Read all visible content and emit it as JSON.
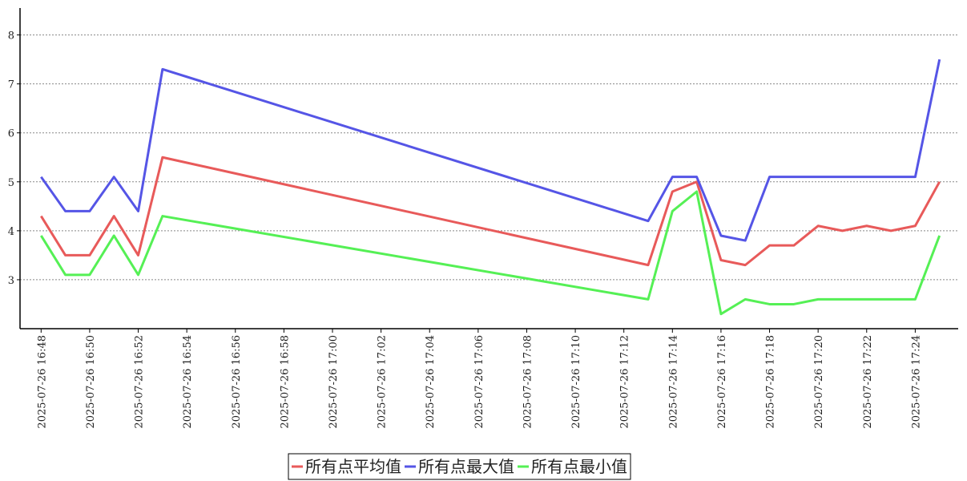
{
  "chart_data": {
    "type": "line",
    "x": [
      "2025-07-26 16:48",
      "2025-07-26 16:49",
      "2025-07-26 16:50",
      "2025-07-26 16:51",
      "2025-07-26 16:52",
      "2025-07-26 16:53",
      "2025-07-26 17:13",
      "2025-07-26 17:14",
      "2025-07-26 17:15",
      "2025-07-26 17:16",
      "2025-07-26 17:17",
      "2025-07-26 17:18",
      "2025-07-26 17:19",
      "2025-07-26 17:20",
      "2025-07-26 17:21",
      "2025-07-26 17:22",
      "2025-07-26 17:23",
      "2025-07-26 17:24",
      "2025-07-26 17:25"
    ],
    "series": [
      {
        "name": "所有点平均值",
        "color": "#e85a5a",
        "values": [
          4.3,
          3.5,
          3.5,
          4.3,
          3.5,
          5.5,
          3.3,
          4.8,
          5.0,
          3.4,
          3.3,
          3.7,
          3.7,
          4.1,
          4.0,
          4.1,
          4.0,
          4.1,
          5.0
        ]
      },
      {
        "name": "所有点最大值",
        "color": "#5555e6",
        "values": [
          5.1,
          4.4,
          4.4,
          5.1,
          4.4,
          7.3,
          4.2,
          5.1,
          5.1,
          3.9,
          3.8,
          5.1,
          5.1,
          5.1,
          5.1,
          5.1,
          5.1,
          5.1,
          7.5
        ]
      },
      {
        "name": "所有点最小值",
        "color": "#55f055",
        "values": [
          3.9,
          3.1,
          3.1,
          3.9,
          3.1,
          4.3,
          2.6,
          4.4,
          4.8,
          2.3,
          2.6,
          2.5,
          2.5,
          2.6,
          2.6,
          2.6,
          2.6,
          2.6,
          3.9
        ]
      }
    ],
    "xlim": [
      "2025-07-26 16:47",
      "2025-07-26 17:26"
    ],
    "xticks": [
      "2025-07-26 16:48",
      "2025-07-26 16:50",
      "2025-07-26 16:52",
      "2025-07-26 16:54",
      "2025-07-26 16:56",
      "2025-07-26 16:58",
      "2025-07-26 17:00",
      "2025-07-26 17:02",
      "2025-07-26 17:04",
      "2025-07-26 17:06",
      "2025-07-26 17:08",
      "2025-07-26 17:10",
      "2025-07-26 17:12",
      "2025-07-26 17:14",
      "2025-07-26 17:16",
      "2025-07-26 17:18",
      "2025-07-26 17:20",
      "2025-07-26 17:22",
      "2025-07-26 17:24"
    ],
    "ylim": [
      2,
      8.55
    ],
    "yticks": [
      3,
      4,
      5,
      6,
      7,
      8
    ],
    "grid": true,
    "legend": "bottom"
  }
}
